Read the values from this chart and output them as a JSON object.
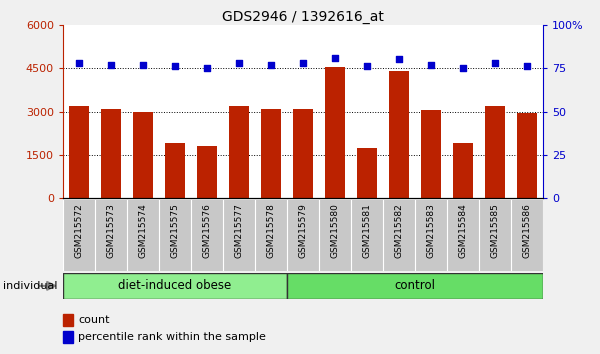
{
  "title": "GDS2946 / 1392616_at",
  "samples": [
    "GSM215572",
    "GSM215573",
    "GSM215574",
    "GSM215575",
    "GSM215576",
    "GSM215577",
    "GSM215578",
    "GSM215579",
    "GSM215580",
    "GSM215581",
    "GSM215582",
    "GSM215583",
    "GSM215584",
    "GSM215585",
    "GSM215586"
  ],
  "bar_values": [
    3200,
    3100,
    3000,
    1900,
    1800,
    3200,
    3100,
    3100,
    4550,
    1750,
    4400,
    3050,
    1900,
    3200,
    2950
  ],
  "dot_values": [
    78,
    77,
    77,
    76,
    75,
    78,
    77,
    78,
    81,
    76,
    80,
    77,
    75,
    78,
    76
  ],
  "bar_color": "#bb2200",
  "dot_color": "#0000cc",
  "ylim_left": [
    0,
    6000
  ],
  "ylim_right": [
    0,
    100
  ],
  "yticks_left": [
    0,
    1500,
    3000,
    4500,
    6000
  ],
  "ytick_labels_left": [
    "0",
    "1500",
    "3000",
    "4500",
    "6000"
  ],
  "yticks_right": [
    0,
    25,
    50,
    75,
    100
  ],
  "ytick_labels_right": [
    "0",
    "25",
    "50",
    "75",
    "100%"
  ],
  "group1_label": "diet-induced obese",
  "group2_label": "control",
  "group1_count": 7,
  "group2_count": 8,
  "individual_label": "individual",
  "legend_count_label": "count",
  "legend_pct_label": "percentile rank within the sample",
  "plot_bg": "#ffffff",
  "xtick_bg": "#c8c8c8",
  "group1_color": "#90ee90",
  "group2_color": "#66dd66",
  "fig_bg": "#f0f0f0"
}
